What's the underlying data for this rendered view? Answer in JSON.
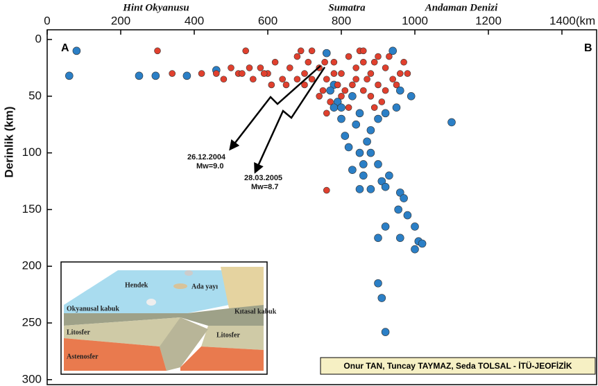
{
  "chart_data": {
    "type": "scatter",
    "y_label": "Derinlik (km)",
    "xlim": [
      0,
      1500
    ],
    "xticks": [
      0,
      200,
      400,
      600,
      800,
      1000,
      1200,
      {
        "value": 1400,
        "label": "1400(km"
      }
    ],
    "ylim": [
      0,
      305
    ],
    "yticks": [
      0,
      50,
      100,
      150,
      200,
      250,
      300
    ],
    "y_inverted": true,
    "x_axis_position": "top",
    "grid": false,
    "region_labels": [
      "Hint Okyanusu",
      "Sumatra",
      "Andaman Denizi"
    ],
    "corner_labels": [
      "A",
      "B"
    ],
    "events": [
      {
        "date": "26.12.2004",
        "magnitude": "Mw=9.0"
      },
      {
        "date": "28.03.2005",
        "magnitude": "Mw=8.7"
      }
    ],
    "credit": "Onur TAN, Tuncay TAYMAZ, Seda TOLSAL  -  İTÜ-JEOFİZİK",
    "series": [
      {
        "color": "#2b7fc6",
        "x": [
          60,
          80,
          250,
          295,
          380,
          460,
          760,
          780,
          790,
          800,
          810,
          780,
          820,
          850,
          860,
          870,
          880,
          900,
          920,
          950,
          960,
          940,
          990,
          840,
          800,
          770,
          830,
          850,
          880,
          900,
          880,
          910,
          920,
          930,
          960,
          970,
          955,
          980,
          1000,
          1010,
          1020,
          1000,
          960,
          900,
          920,
          1100,
          900,
          910,
          920,
          850,
          830,
          860
        ],
        "y": [
          32,
          10,
          32,
          32,
          32,
          27,
          12,
          40,
          55,
          70,
          85,
          60,
          95,
          100,
          110,
          90,
          80,
          70,
          65,
          60,
          45,
          10,
          50,
          75,
          60,
          45,
          50,
          65,
          100,
          110,
          132,
          125,
          130,
          120,
          135,
          140,
          150,
          155,
          165,
          178,
          180,
          185,
          175,
          175,
          165,
          73,
          215,
          228,
          258,
          132,
          115,
          120
        ]
      },
      {
        "color": "#e0402e",
        "x": [
          300,
          540,
          460,
          340,
          420,
          500,
          520,
          560,
          580,
          600,
          620,
          640,
          660,
          680,
          700,
          720,
          740,
          760,
          780,
          800,
          820,
          840,
          860,
          880,
          900,
          920,
          940,
          960,
          970,
          750,
          770,
          790,
          810,
          830,
          860,
          880,
          900,
          920,
          700,
          680,
          650,
          610,
          590,
          550,
          530,
          480,
          760,
          740,
          720,
          710,
          690,
          850,
          870,
          890,
          910,
          780,
          800,
          820,
          840,
          860,
          890,
          930,
          950,
          980,
          760,
          755
        ],
        "y": [
          10,
          10,
          30,
          30,
          30,
          25,
          30,
          35,
          25,
          30,
          20,
          35,
          25,
          15,
          30,
          10,
          25,
          35,
          20,
          30,
          15,
          25,
          20,
          30,
          15,
          25,
          35,
          30,
          20,
          45,
          55,
          40,
          45,
          40,
          45,
          50,
          40,
          45,
          40,
          35,
          40,
          40,
          30,
          25,
          30,
          35,
          133,
          50,
          35,
          20,
          10,
          10,
          35,
          60,
          55,
          30,
          50,
          60,
          35,
          10,
          20,
          15,
          40,
          30,
          65,
          20
        ]
      }
    ]
  },
  "inset": {
    "labels": [
      "Hendek",
      "Ada yayı",
      "Okyanusal kabuk",
      "Kıtasal kabuk",
      "Litosfer",
      "Litosfer",
      "Astenosfer"
    ]
  }
}
